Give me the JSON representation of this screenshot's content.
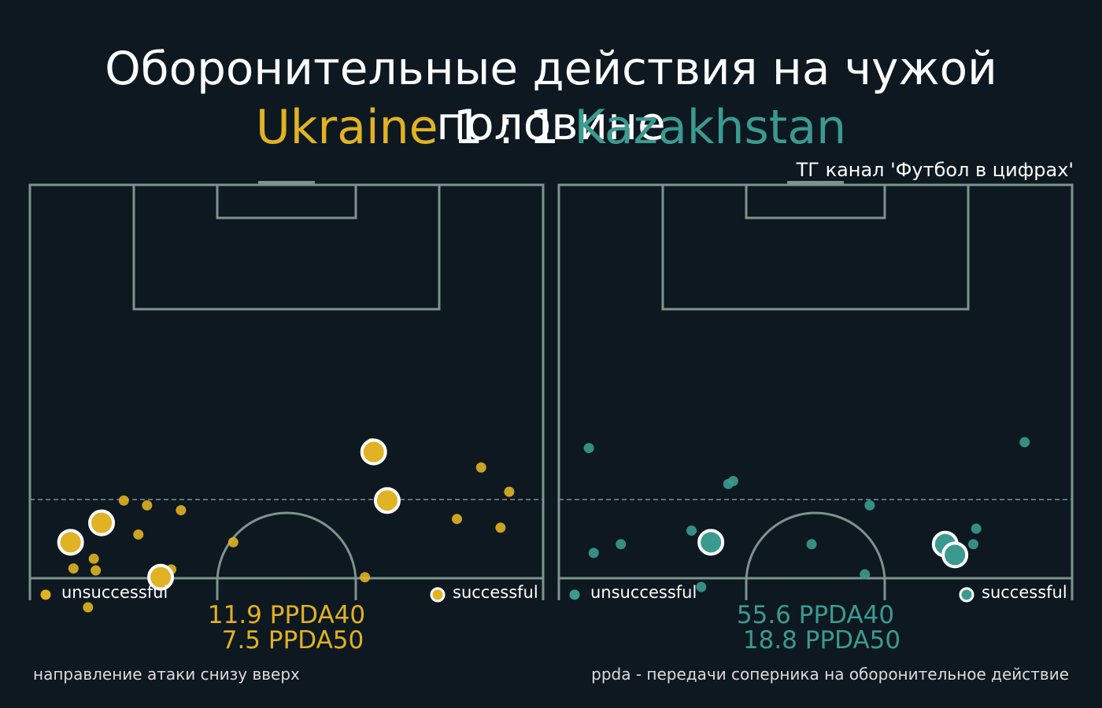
{
  "header": {
    "title": "Оборонительные действия на чужой половине",
    "home_team": "Ukraine",
    "score": "1 : 1",
    "away_team": "Kazakhstan",
    "credit": "ТГ канал 'Футбол в цифрах'"
  },
  "colors": {
    "background": "#0e1820",
    "pitch_lines": "#7c948c",
    "home": "#e0b224",
    "away": "#3b9a8f",
    "highlight_ring": "#ffffff"
  },
  "legend": {
    "unsuccessful": "unsuccessful",
    "successful": "successful"
  },
  "footer": {
    "left_note": "направление атаки снизу вверх",
    "right_note": "ppda - передачи соперника на оборонительное действие"
  },
  "chart_data": [
    {
      "type": "scatter",
      "team": "Ukraine",
      "color": "#e0b224",
      "stats": {
        "ppda40": "11.9 PPDA40",
        "ppda50": "7.5 PPDA50"
      },
      "series": [
        {
          "name": "unsuccessful",
          "points": [
            [
              6,
              43.5
            ],
            [
              6.6,
              38.5
            ],
            [
              11.2,
              36
            ],
            [
              12.1,
              33
            ],
            [
              15.6,
              33.5
            ],
            [
              9.7,
              32.5
            ],
            [
              14.6,
              39.6
            ],
            [
              21,
              36.8
            ],
            [
              4.5,
              39.5
            ],
            [
              6.8,
              39.7
            ],
            [
              34.6,
              40.4
            ],
            [
              35.3,
              26.6
            ],
            [
              44.1,
              34.4
            ],
            [
              46.6,
              29.1
            ],
            [
              49.5,
              31.6
            ],
            [
              48.6,
              35.3
            ]
          ]
        },
        {
          "name": "successful",
          "points": [
            [
              35.5,
              27.5
            ],
            [
              36.9,
              32.5
            ],
            [
              7.4,
              34.8
            ],
            [
              4.2,
              36.8
            ],
            [
              13.5,
              40.4
            ]
          ]
        }
      ]
    },
    {
      "type": "scatter",
      "team": "Kazakhstan",
      "color": "#3b9a8f",
      "stats": {
        "ppda40": "55.6 PPDA40",
        "ppda50": "18.8 PPDA50"
      },
      "series": [
        {
          "name": "unsuccessful",
          "points": [
            [
              3.1,
              27.1
            ],
            [
              18,
              30.5
            ],
            [
              17.5,
              30.8
            ],
            [
              32.1,
              33
            ],
            [
              13.7,
              35.6
            ],
            [
              43.1,
              35.4
            ],
            [
              48.1,
              26.5
            ],
            [
              6.4,
              37
            ],
            [
              3.6,
              37.9
            ],
            [
              26.1,
              37
            ],
            [
              31.6,
              40.1
            ],
            [
              42.8,
              37
            ],
            [
              14.7,
              41.4
            ]
          ]
        },
        {
          "name": "successful",
          "points": [
            [
              15.7,
              36.8
            ],
            [
              39.9,
              37
            ],
            [
              40.9,
              38.1
            ]
          ]
        }
      ]
    }
  ]
}
